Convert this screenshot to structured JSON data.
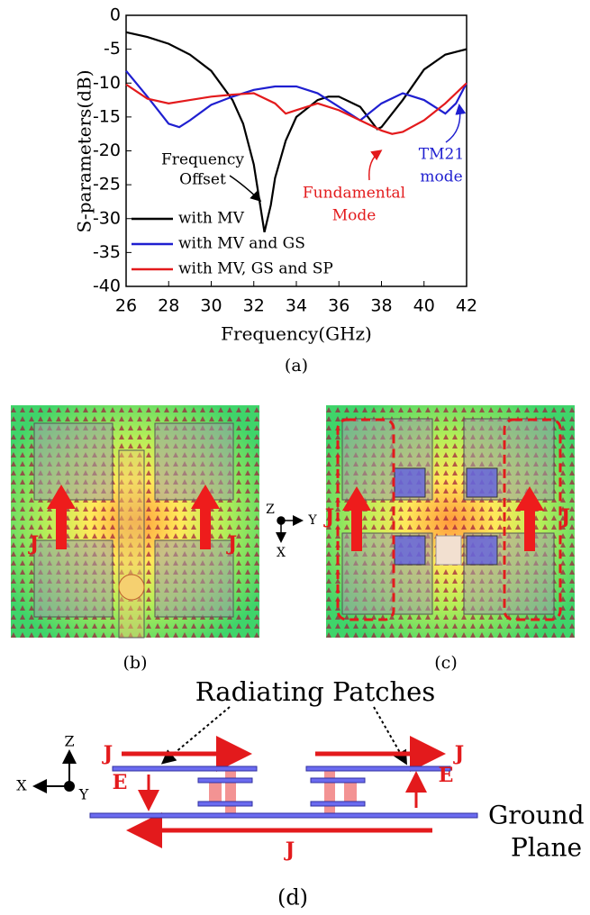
{
  "chart_data": {
    "type": "line",
    "caption": "(a)",
    "xlabel": "Frequency(GHz)",
    "ylabel": "S-parameters(dB)",
    "xlim": [
      26,
      42
    ],
    "xticks": [
      26,
      28,
      30,
      32,
      34,
      36,
      38,
      40,
      42
    ],
    "ylim": [
      -40,
      0
    ],
    "yticks": [
      0,
      -5,
      -10,
      -15,
      -20,
      -25,
      -30,
      -35,
      -40
    ],
    "legend": "lower left",
    "annotations": [
      {
        "lines": [
          "Frequency",
          "Offset"
        ],
        "color": "#000000"
      },
      {
        "lines": [
          "Fundamental",
          "Mode"
        ],
        "color": "#e31a1c"
      },
      {
        "lines": [
          "TM21",
          "mode"
        ],
        "color": "#1f1fd0"
      }
    ],
    "series": [
      {
        "name": "with MV",
        "color": "#000000",
        "x": [
          26,
          27,
          28,
          29,
          30,
          31,
          31.5,
          32,
          32.3,
          32.5,
          32.8,
          33,
          33.5,
          34,
          35,
          35.5,
          36,
          37,
          37.8,
          38,
          39,
          40,
          41,
          42
        ],
        "values": [
          -2.5,
          -3.2,
          -4.2,
          -5.8,
          -8.2,
          -12.5,
          -16,
          -22,
          -28,
          -32,
          -28,
          -24,
          -18.5,
          -15,
          -12.5,
          -12,
          -12,
          -13.5,
          -16.8,
          -16.5,
          -12.5,
          -8,
          -5.8,
          -5
        ]
      },
      {
        "name": "with MV and GS",
        "color": "#1f1fd0",
        "x": [
          26,
          27,
          28,
          28.5,
          29,
          30,
          31,
          32,
          33,
          34,
          35,
          36,
          37,
          38,
          39,
          40,
          41,
          41.5,
          42
        ],
        "values": [
          -8.2,
          -12,
          -16,
          -16.5,
          -15.5,
          -13.2,
          -12,
          -11,
          -10.5,
          -10.5,
          -11.5,
          -13.5,
          -15.5,
          -13,
          -11.5,
          -12.5,
          -14.5,
          -13,
          -10
        ]
      },
      {
        "name": "with MV, GS and SP",
        "color": "#e31a1c",
        "x": [
          26,
          27,
          28,
          29,
          30,
          31,
          32,
          33,
          33.5,
          34,
          35,
          36,
          37,
          38,
          38.5,
          39,
          40,
          41,
          42
        ],
        "values": [
          -10.2,
          -12.3,
          -13,
          -12.5,
          -12,
          -11.7,
          -11.5,
          -13,
          -14.5,
          -14,
          -13,
          -14,
          -15.5,
          -17,
          -17.5,
          -17.2,
          -15.5,
          -13,
          -10
        ]
      }
    ]
  },
  "panel_b": {
    "caption": "(b)",
    "current_labels": [
      "J",
      "J"
    ]
  },
  "panel_c": {
    "caption": "(c)",
    "current_labels": [
      "J",
      "J"
    ]
  },
  "axes_bc": {
    "z": "Z",
    "y": "Y",
    "x": "X"
  },
  "panel_d": {
    "caption": "(d)",
    "title": "Radiating Patches",
    "current_labels": [
      "J",
      "J",
      "J"
    ],
    "field_labels": [
      "E",
      "E"
    ],
    "ground_plane": [
      "Ground",
      "Plane"
    ],
    "axes": {
      "z": "Z",
      "x": "X",
      "y": "Y"
    }
  }
}
